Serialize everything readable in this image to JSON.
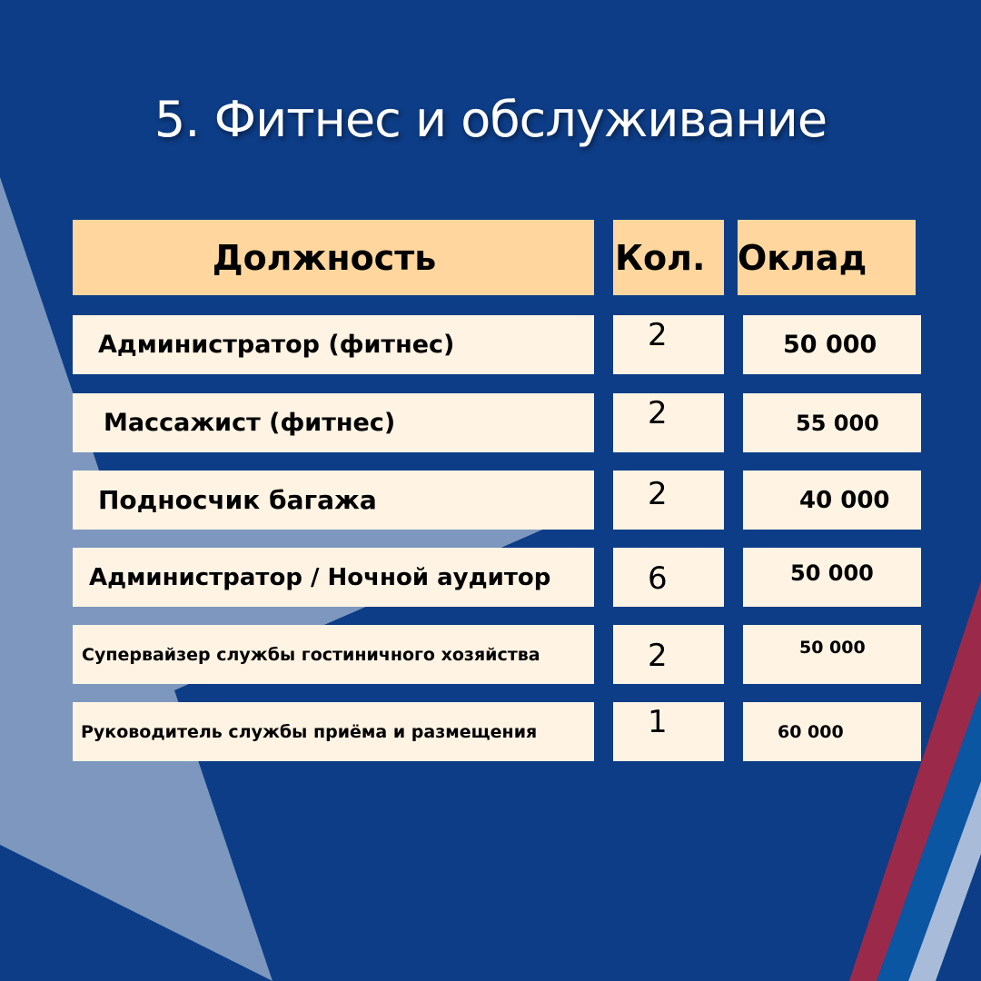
{
  "title": "5. Фитнес и обслуживание",
  "table": {
    "headers": [
      "Должность",
      "Кол.",
      "Оклад"
    ],
    "rows": [
      {
        "position": "Администратор (фитнес)",
        "count": "2",
        "salary": "50 000"
      },
      {
        "position": "Массажист (фитнес)",
        "count": "2",
        "salary": "55 000"
      },
      {
        "position": "Подносчик багажа",
        "count": "2",
        "salary": "40 000"
      },
      {
        "position": "Администратор / Ночной аудитор",
        "count": "6",
        "salary": "50 000"
      },
      {
        "position": "Супервайзер службы гостиничного хозяйства",
        "count": "2",
        "salary": "50 000"
      },
      {
        "position": "Руководитель службы приёма и размещения",
        "count": "1",
        "salary": "60 000"
      }
    ]
  },
  "colors": {
    "background": "#0d3d87",
    "header": "#ffd79e",
    "row": "#fff4e4",
    "stripe_red": "#9b2a4a",
    "stripe_blue": "#0a56a3",
    "stripe_light": "#a8bcd9"
  }
}
